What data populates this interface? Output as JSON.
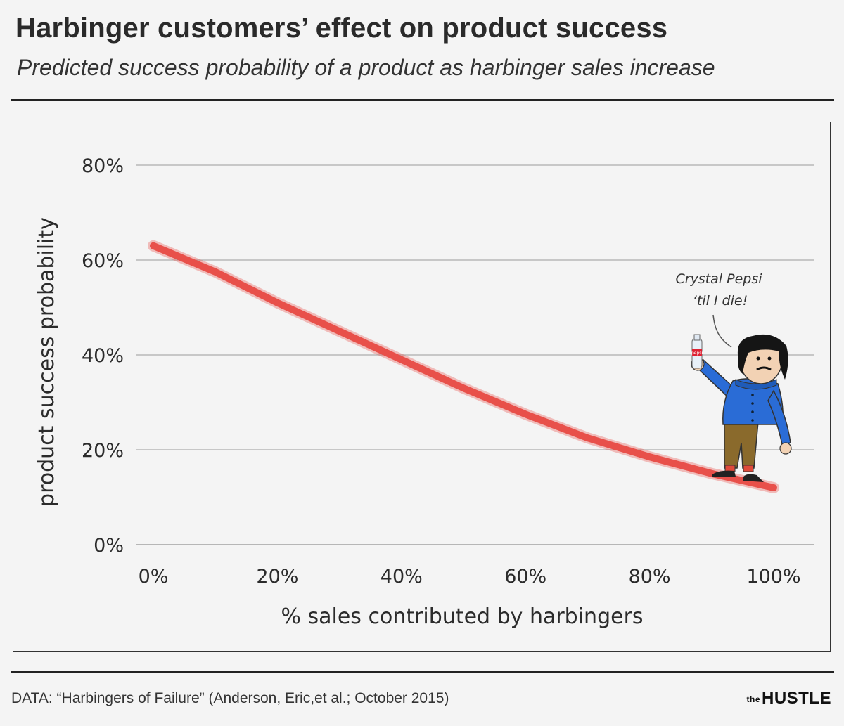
{
  "header": {
    "title": "Harbinger customers’ effect on product success",
    "subtitle": "Predicted success probability of a product as harbinger sales increase"
  },
  "footer": {
    "source": "DATA: “Harbingers of Failure” (Anderson, Eric,et al.; October 2015)",
    "brand_small": "the",
    "brand_big": "HUSTLE"
  },
  "chart_data": {
    "type": "line",
    "xlabel": "% sales contributed by harbingers",
    "ylabel": "product success probability",
    "xlim": [
      0,
      100
    ],
    "ylim": [
      0,
      80
    ],
    "x_ticks": [
      "0%",
      "20%",
      "40%",
      "60%",
      "80%",
      "100%"
    ],
    "x_tick_values": [
      0,
      20,
      40,
      60,
      80,
      100
    ],
    "y_ticks": [
      "0%",
      "20%",
      "40%",
      "60%",
      "80%"
    ],
    "y_tick_values": [
      0,
      20,
      40,
      60,
      80
    ],
    "grid": "horizontal",
    "series": [
      {
        "color": "#e8504a",
        "x": [
          0,
          10,
          20,
          30,
          40,
          50,
          60,
          70,
          80,
          90,
          100
        ],
        "y": [
          63,
          57.5,
          51,
          45,
          39,
          33,
          27.5,
          22.5,
          18.5,
          15,
          12
        ]
      }
    ],
    "annotation": {
      "line1": "Crystal Pepsi",
      "line2": "‘til I die!",
      "bottle_label": "pepsi"
    }
  }
}
